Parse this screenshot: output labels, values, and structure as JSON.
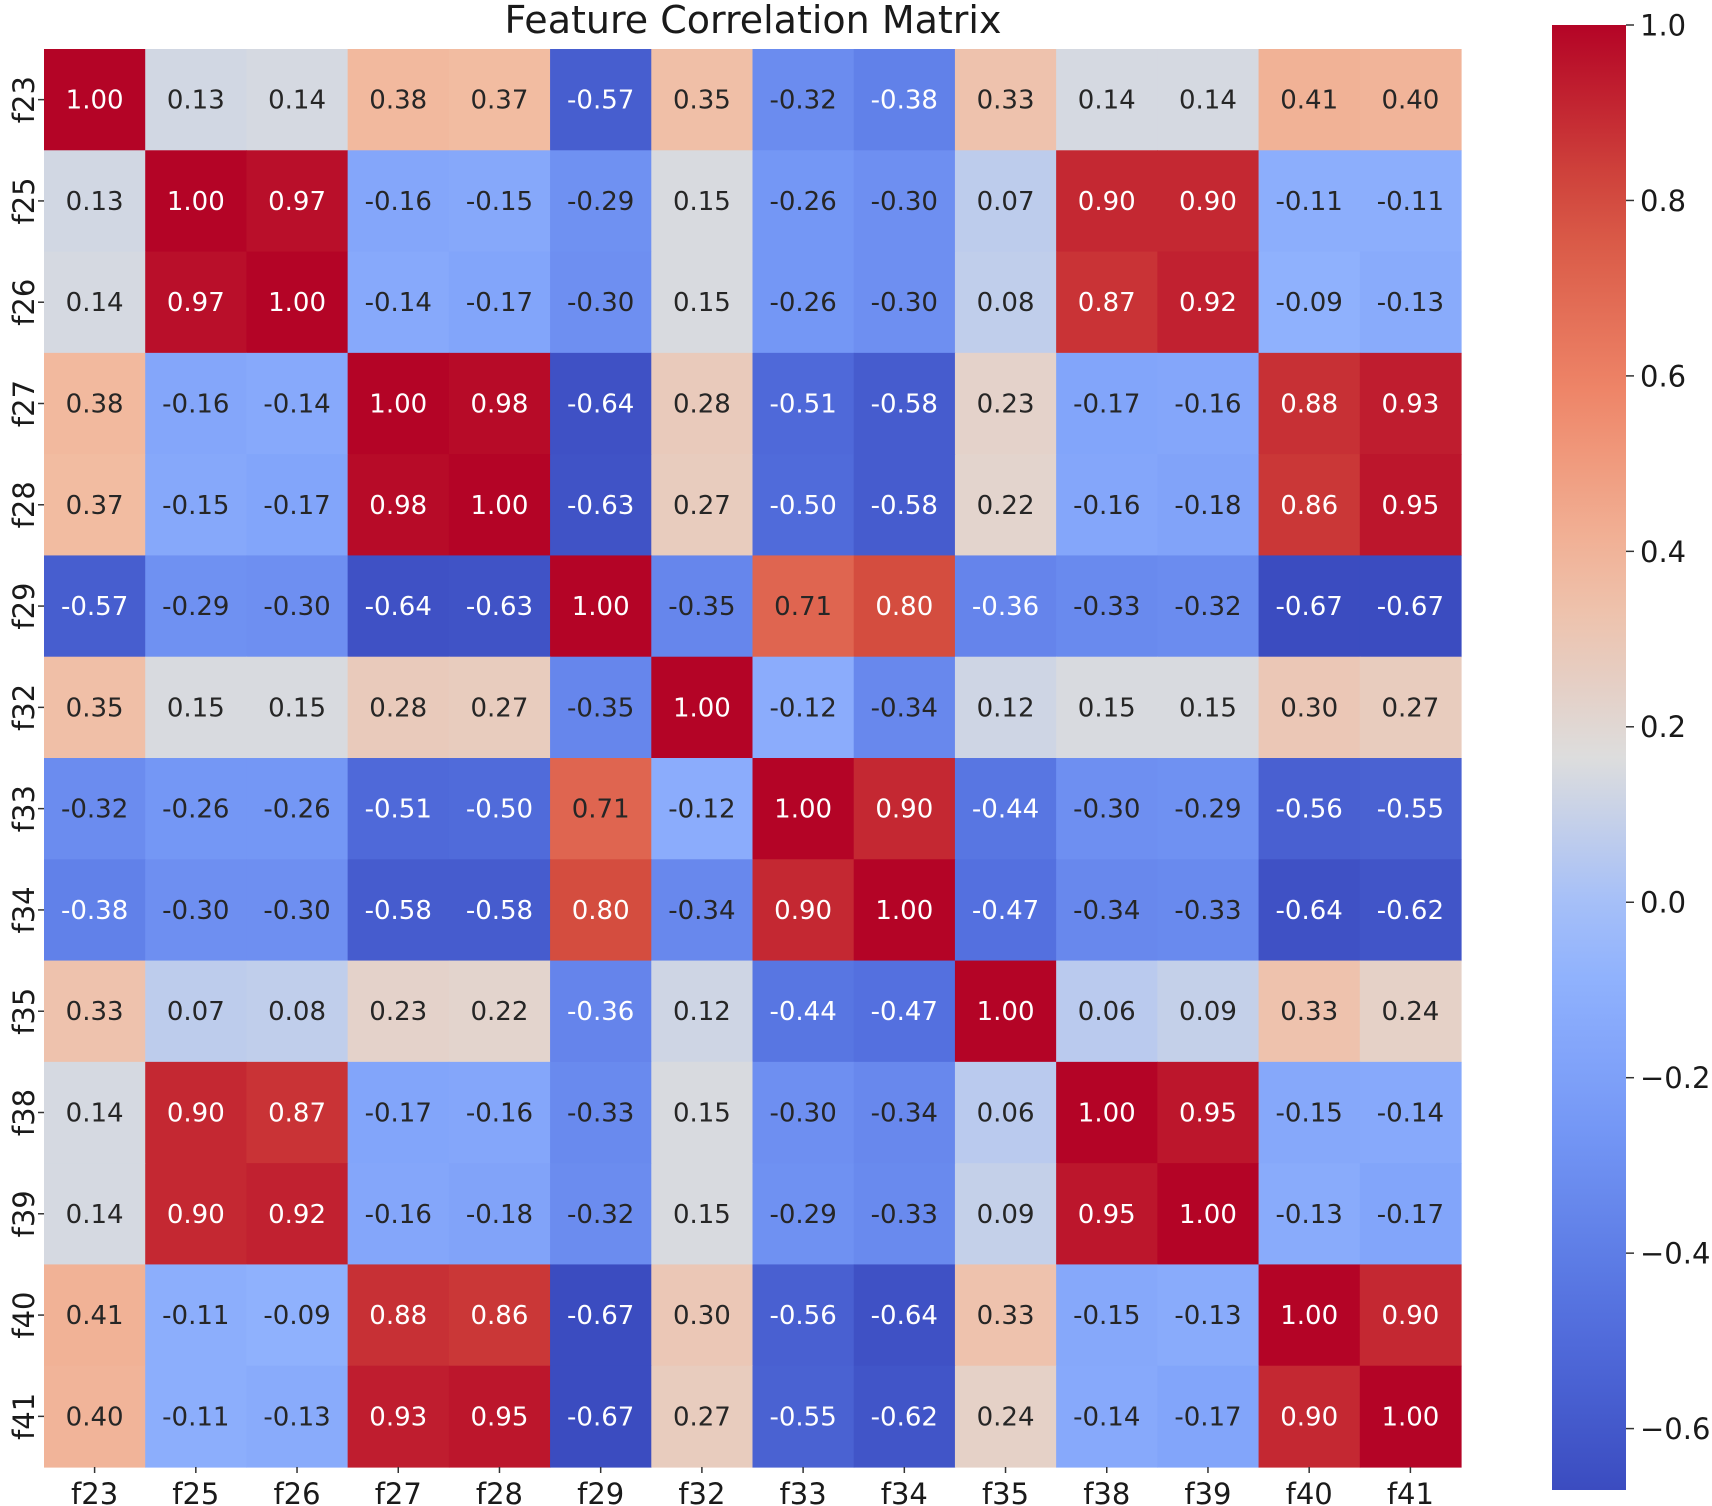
{
  "chart_data": {
    "type": "heatmap",
    "title": "Feature Correlation Matrix",
    "xlabel": "",
    "ylabel": "",
    "colormap": "coolwarm",
    "value_format": "2 decimals",
    "x_labels": [
      "f23",
      "f25",
      "f26",
      "f27",
      "f28",
      "f29",
      "f32",
      "f33",
      "f34",
      "f35",
      "f38",
      "f39",
      "f40",
      "f41"
    ],
    "y_labels": [
      "f23",
      "f25",
      "f26",
      "f27",
      "f28",
      "f29",
      "f32",
      "f33",
      "f34",
      "f35",
      "f38",
      "f39",
      "f40",
      "f41"
    ],
    "values": [
      [
        1.0,
        0.13,
        0.14,
        0.38,
        0.37,
        -0.57,
        0.35,
        -0.32,
        -0.38,
        0.33,
        0.14,
        0.14,
        0.41,
        0.4
      ],
      [
        0.13,
        1.0,
        0.97,
        -0.16,
        -0.15,
        -0.29,
        0.15,
        -0.26,
        -0.3,
        0.07,
        0.9,
        0.9,
        -0.11,
        -0.11
      ],
      [
        0.14,
        0.97,
        1.0,
        -0.14,
        -0.17,
        -0.3,
        0.15,
        -0.26,
        -0.3,
        0.08,
        0.87,
        0.92,
        -0.09,
        -0.13
      ],
      [
        0.38,
        -0.16,
        -0.14,
        1.0,
        0.98,
        -0.64,
        0.28,
        -0.51,
        -0.58,
        0.23,
        -0.17,
        -0.16,
        0.88,
        0.93
      ],
      [
        0.37,
        -0.15,
        -0.17,
        0.98,
        1.0,
        -0.63,
        0.27,
        -0.5,
        -0.58,
        0.22,
        -0.16,
        -0.18,
        0.86,
        0.95
      ],
      [
        -0.57,
        -0.29,
        -0.3,
        -0.64,
        -0.63,
        1.0,
        -0.35,
        0.71,
        0.8,
        -0.36,
        -0.33,
        -0.32,
        -0.67,
        -0.67
      ],
      [
        0.35,
        0.15,
        0.15,
        0.28,
        0.27,
        -0.35,
        1.0,
        -0.12,
        -0.34,
        0.12,
        0.15,
        0.15,
        0.3,
        0.27
      ],
      [
        -0.32,
        -0.26,
        -0.26,
        -0.51,
        -0.5,
        0.71,
        -0.12,
        1.0,
        0.9,
        -0.44,
        -0.3,
        -0.29,
        -0.56,
        -0.55
      ],
      [
        -0.38,
        -0.3,
        -0.3,
        -0.58,
        -0.58,
        0.8,
        -0.34,
        0.9,
        1.0,
        -0.47,
        -0.34,
        -0.33,
        -0.64,
        -0.62
      ],
      [
        0.33,
        0.07,
        0.08,
        0.23,
        0.22,
        -0.36,
        0.12,
        -0.44,
        -0.47,
        1.0,
        0.06,
        0.09,
        0.33,
        0.24
      ],
      [
        0.14,
        0.9,
        0.87,
        -0.17,
        -0.16,
        -0.33,
        0.15,
        -0.3,
        -0.34,
        0.06,
        1.0,
        0.95,
        -0.15,
        -0.14
      ],
      [
        0.14,
        0.9,
        0.92,
        -0.16,
        -0.18,
        -0.32,
        0.15,
        -0.29,
        -0.33,
        0.09,
        0.95,
        1.0,
        -0.13,
        -0.17
      ],
      [
        0.41,
        -0.11,
        -0.09,
        0.88,
        0.86,
        -0.67,
        0.3,
        -0.56,
        -0.64,
        0.33,
        -0.15,
        -0.13,
        1.0,
        0.9
      ],
      [
        0.4,
        -0.11,
        -0.13,
        0.93,
        0.95,
        -0.67,
        0.27,
        -0.55,
        -0.62,
        0.24,
        -0.14,
        -0.17,
        0.9,
        1.0
      ]
    ],
    "colorbar": {
      "vmin": -0.67,
      "vmax": 1.0,
      "ticks": [
        -0.6,
        -0.4,
        -0.2,
        0.0,
        0.2,
        0.4,
        0.6,
        0.8,
        1.0
      ],
      "tick_labels": [
        "−0.6",
        "−0.4",
        "−0.2",
        "0.0",
        "0.2",
        "0.4",
        "0.6",
        "0.8",
        "1.0"
      ]
    }
  }
}
